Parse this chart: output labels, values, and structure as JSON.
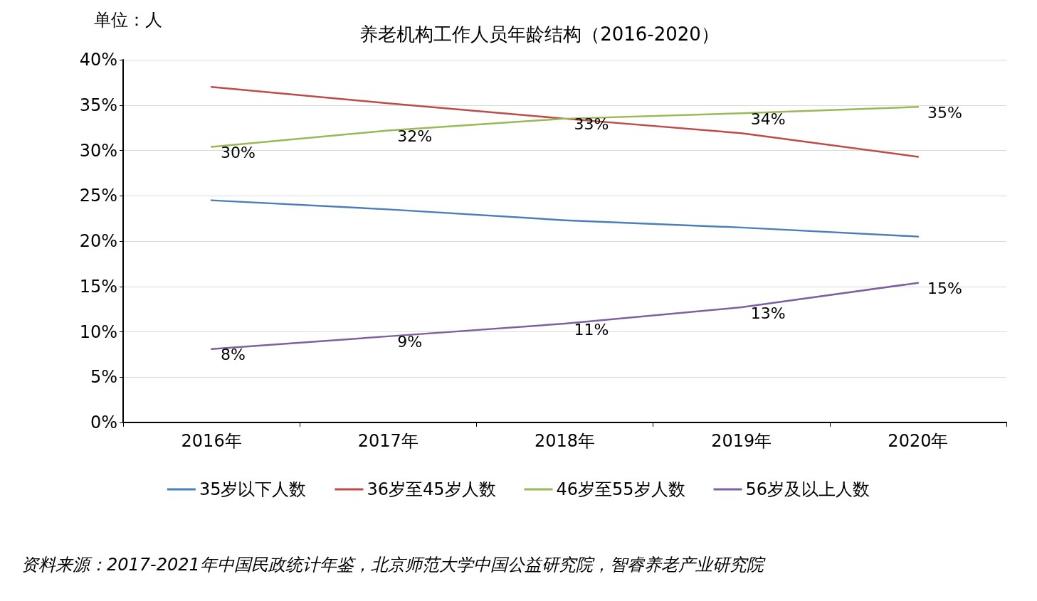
{
  "chart_data": {
    "type": "line",
    "title": "养老机构工作人员年龄结构（2016-2020）",
    "annotations": [
      "单位：人",
      "资料来源：2017-2021年中国民政统计年鉴，北京师范大学中国公益研究院，智睿养老产业研究院"
    ],
    "categories": [
      "2016年",
      "2017年",
      "2018年",
      "2019年",
      "2020年"
    ],
    "series": [
      {
        "name": "35岁以下人数",
        "color": "#4a7ebb",
        "values": [
          24.5,
          23.5,
          22.3,
          21.5,
          20.5
        ]
      },
      {
        "name": "36岁至45岁人数",
        "color": "#be4b48",
        "values": [
          37.0,
          35.2,
          33.5,
          31.9,
          29.3
        ]
      },
      {
        "name": "46岁至55岁人数",
        "color": "#98b954",
        "values": [
          30.4,
          32.2,
          33.5,
          34.1,
          34.8
        ],
        "value_labels": [
          "30%",
          "32%",
          "33%",
          "34%",
          "35%"
        ]
      },
      {
        "name": "56岁及以上人数",
        "color": "#7d60a0",
        "values": [
          8.1,
          9.5,
          10.9,
          12.7,
          15.4
        ],
        "value_labels": [
          "8%",
          "9%",
          "11%",
          "13%",
          "15%"
        ]
      }
    ],
    "ylim": [
      0,
      40
    ],
    "yticks": [
      {
        "value": 0,
        "label": "0%"
      },
      {
        "value": 5,
        "label": "5%"
      },
      {
        "value": 10,
        "label": "10%"
      },
      {
        "value": 15,
        "label": "15%"
      },
      {
        "value": 20,
        "label": "20%"
      },
      {
        "value": 25,
        "label": "25%"
      },
      {
        "value": 30,
        "label": "30%"
      },
      {
        "value": 35,
        "label": "35%"
      },
      {
        "value": 40,
        "label": "40%"
      }
    ],
    "grid": "y",
    "legend": "bottom",
    "marker": "none",
    "line_style": "solid"
  }
}
